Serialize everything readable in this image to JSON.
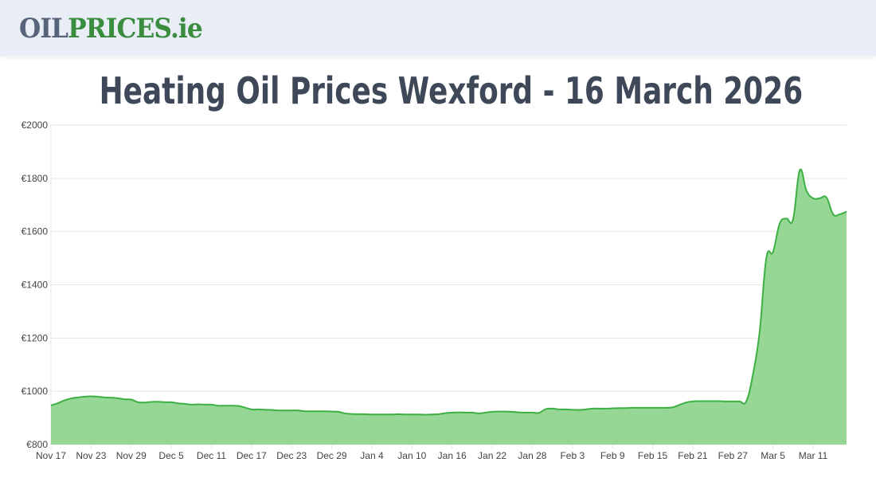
{
  "header": {
    "logo_part1": "OIL",
    "logo_part2": "PRICES.ie"
  },
  "title": "Heating Oil Prices Wexford - 16 March 2026",
  "colors": {
    "line": "#3cb043",
    "fill": "#90d590",
    "grid": "#e6e6e6"
  },
  "chart_data": {
    "type": "area",
    "title": "Heating Oil Prices Wexford - 16 March 2026",
    "xlabel": "",
    "ylabel": "",
    "ylim": [
      800,
      2000
    ],
    "yticks": [
      "€800",
      "€1000",
      "€1200",
      "€1400",
      "€1600",
      "€1800",
      "€2000"
    ],
    "xticks": [
      "Nov 17",
      "Nov 23",
      "Nov 29",
      "Dec 5",
      "Dec 11",
      "Dec 17",
      "Dec 23",
      "Dec 29",
      "Jan 4",
      "Jan 10",
      "Jan 16",
      "Jan 22",
      "Jan 28",
      "Feb 3",
      "Feb 9",
      "Feb 15",
      "Feb 21",
      "Feb 27",
      "Mar 5",
      "Mar 11"
    ],
    "grid": true,
    "x_range": [
      "Nov 17",
      "Mar 16"
    ],
    "values": [
      947,
      955,
      966,
      973,
      977,
      980,
      981,
      980,
      977,
      976,
      974,
      970,
      969,
      959,
      958,
      960,
      961,
      959,
      959,
      955,
      953,
      950,
      951,
      950,
      950,
      946,
      946,
      946,
      945,
      939,
      932,
      932,
      931,
      930,
      928,
      928,
      928,
      928,
      925,
      925,
      925,
      925,
      924,
      923,
      917,
      915,
      914,
      914,
      913,
      913,
      913,
      913,
      914,
      913,
      913,
      913,
      912,
      913,
      914,
      918,
      920,
      921,
      920,
      920,
      917,
      920,
      923,
      924,
      924,
      923,
      921,
      920,
      920,
      919,
      933,
      935,
      932,
      932,
      931,
      930,
      932,
      935,
      935,
      935,
      936,
      937,
      937,
      938,
      938,
      938,
      938,
      938,
      938,
      940,
      949,
      958,
      962,
      963,
      963,
      963,
      963,
      962,
      962,
      962,
      962,
      1064,
      1223,
      1500,
      1523,
      1630,
      1649,
      1646,
      1830,
      1754,
      1725,
      1725,
      1728,
      1665,
      1665,
      1675
    ]
  }
}
